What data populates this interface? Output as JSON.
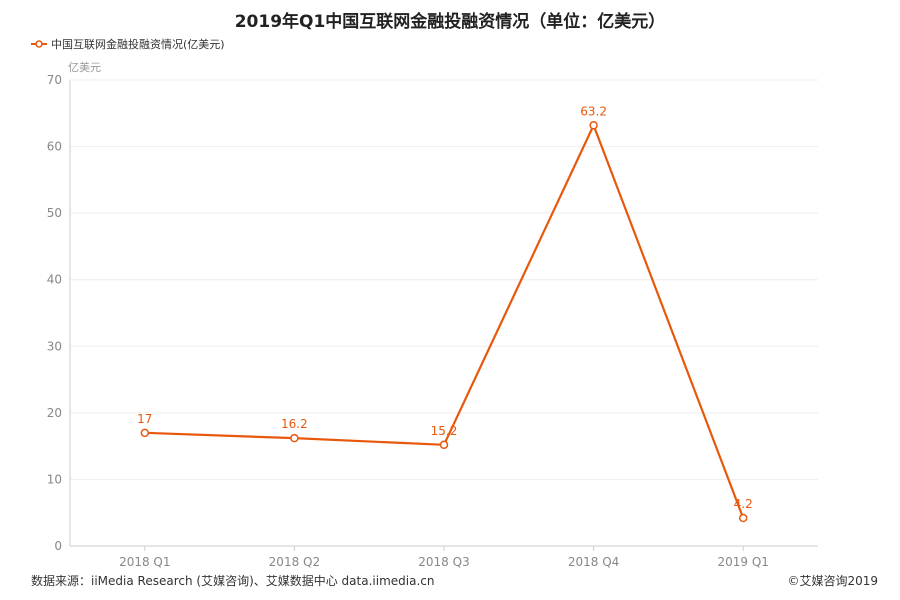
{
  "title": "2019年Q1中国互联网金融投融资情况（单位：亿美元）",
  "legend_label": "中国互联网金融投融资情况(亿美元)",
  "unit_label": "亿美元",
  "source": "数据来源：iiMedia Research (艾媒咨询)、艾媒数据中心 data.iimedia.cn",
  "copyright": "©艾媒咨询2019",
  "colors": {
    "series": "#e8580c",
    "grid": "#eeeeee",
    "axis": "#cccccc",
    "tick_text": "#888888"
  },
  "chart_data": {
    "type": "line",
    "title": "2019年Q1中国互联网金融投融资情况（单位：亿美元）",
    "xlabel": "",
    "ylabel": "亿美元",
    "categories": [
      "2018 Q1",
      "2018 Q2",
      "2018 Q3",
      "2018 Q4",
      "2019 Q1"
    ],
    "series": [
      {
        "name": "中国互联网金融投融资情况(亿美元)",
        "values": [
          17,
          16.2,
          15.2,
          63.2,
          4.2
        ]
      }
    ],
    "data_labels": [
      "17",
      "16.2",
      "15.2",
      "63.2",
      "4.2"
    ],
    "ylim": [
      0,
      70
    ],
    "yticks": [
      0,
      10,
      20,
      30,
      40,
      50,
      60,
      70
    ],
    "grid": true,
    "legend_position": "top-left"
  }
}
